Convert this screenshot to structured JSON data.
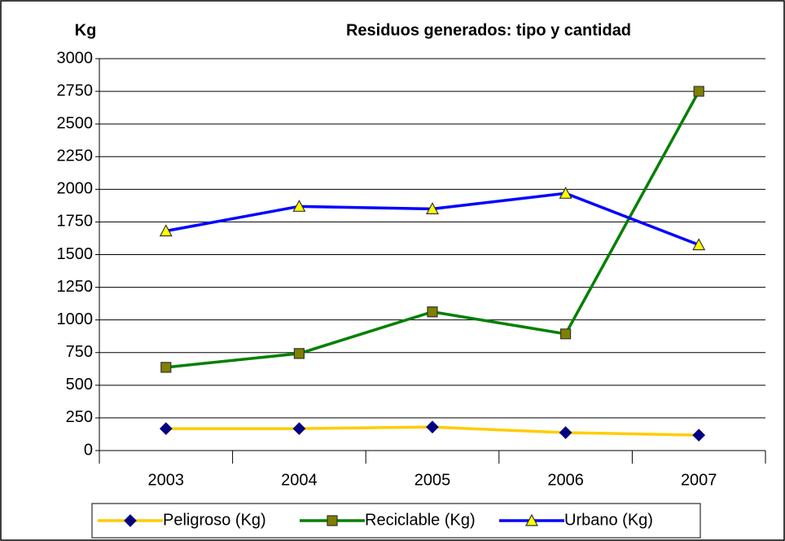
{
  "chart_data": {
    "type": "line",
    "title": "Residuos generados: tipo y cantidad",
    "ylabel": "Kg",
    "categories": [
      "2003",
      "2004",
      "2005",
      "2006",
      "2007"
    ],
    "series": [
      {
        "name": "Peligroso (Kg)",
        "color": "#ffcc00",
        "marker": "diamond",
        "marker_color": "#000080",
        "values": [
          168,
          168,
          180,
          137,
          118
        ]
      },
      {
        "name": "Reciclable (Kg)",
        "color": "#008000",
        "marker": "square",
        "marker_color": "#808000",
        "values": [
          637,
          743,
          1062,
          893,
          2750
        ]
      },
      {
        "name": "Urbano (Kg)",
        "color": "#0000ff",
        "marker": "triangle",
        "marker_color": "#ffff00",
        "values": [
          1681,
          1869,
          1850,
          1969,
          1575
        ]
      }
    ],
    "ylim": [
      0,
      3000
    ],
    "yticks": [
      0,
      250,
      500,
      750,
      1000,
      1250,
      1500,
      1750,
      2000,
      2250,
      2500,
      2750,
      3000
    ],
    "grid": true,
    "legend": "bottom"
  }
}
